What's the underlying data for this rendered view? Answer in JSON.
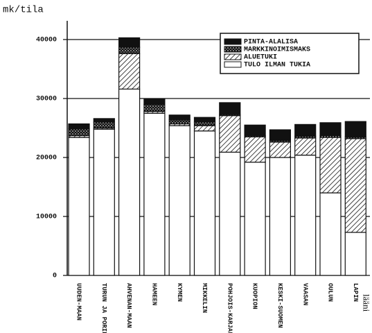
{
  "chart_data": {
    "type": "stacked_bar",
    "y_label": "mk/tila",
    "categories": [
      "UUDEN-MAAN",
      "TURUN JA PORIN",
      "AHVENAN-MAAN",
      "HAMEEN",
      "KYMEN",
      "MIKKELIN",
      "POHJOIS-KARJALAN",
      "KUOPION",
      "KESKI-SUOMEN",
      "VAASAN",
      "OULUN",
      "LAPIN"
    ],
    "annotation": "lääni",
    "series": [
      {
        "name": "TULO ILMAN TUKIA",
        "color": "#ffffff",
        "pattern": "solid",
        "values": [
          23400,
          24800,
          31600,
          27500,
          25400,
          24500,
          20900,
          19200,
          20000,
          20400,
          14000,
          7300
        ]
      },
      {
        "name": "ALUETUKI",
        "color": "#111111",
        "pattern": "hatch",
        "values": [
          300,
          200,
          6000,
          300,
          300,
          900,
          6200,
          4300,
          2600,
          2900,
          9400,
          15900
        ]
      },
      {
        "name": "MARKKINOIMISMAKS",
        "color": "#111111",
        "pattern": "dots",
        "values": [
          1200,
          1000,
          1100,
          1200,
          700,
          600,
          200,
          200,
          300,
          300,
          300,
          300
        ]
      },
      {
        "name": "PINTA-ALALISA",
        "color": "#111111",
        "pattern": "solid",
        "values": [
          800,
          600,
          1600,
          900,
          800,
          800,
          2000,
          1800,
          1800,
          2000,
          2200,
          2600
        ]
      }
    ],
    "ylim": [
      0,
      45000
    ],
    "yticks": [
      0,
      10000,
      20000,
      30000,
      40000
    ],
    "grid": true,
    "legend": "top-right"
  }
}
